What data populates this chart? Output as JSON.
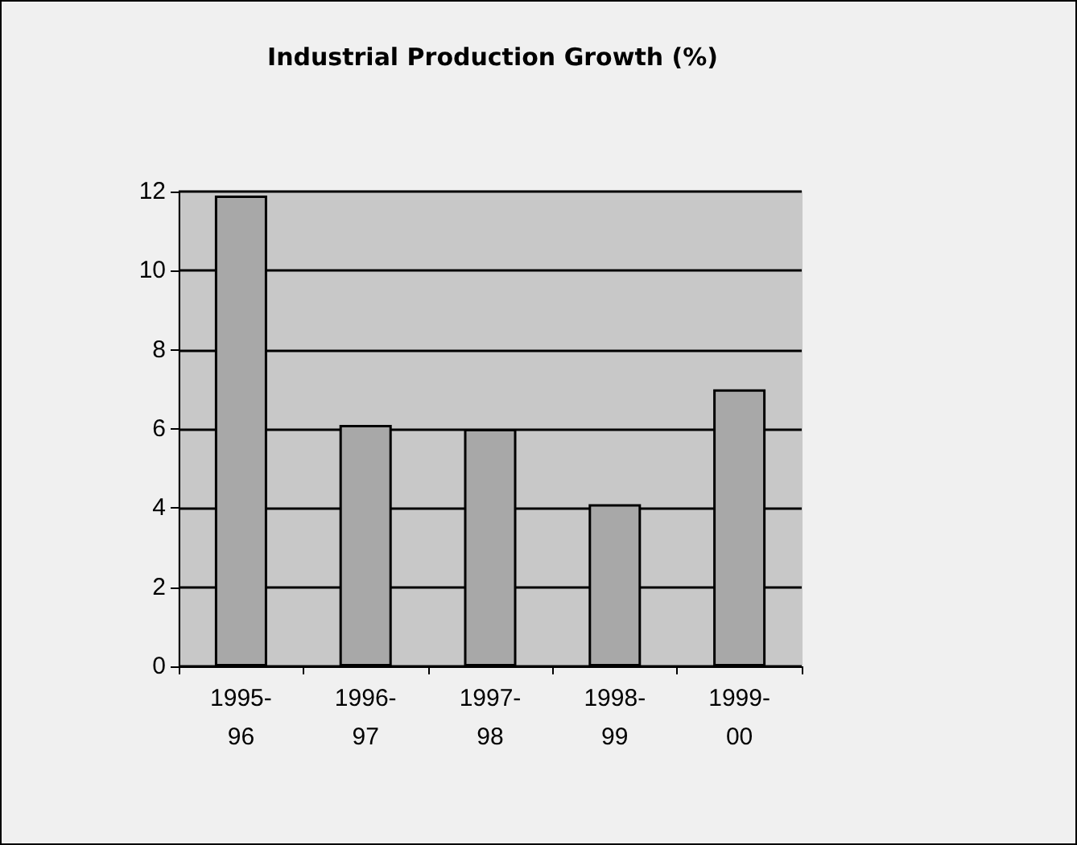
{
  "chart_data": {
    "type": "bar",
    "title": "Industrial Production Growth (%)",
    "categories": [
      "1995-96",
      "1996-97",
      "1997-98",
      "1998-99",
      "1999-00"
    ],
    "values": [
      11.9,
      6.1,
      6.0,
      4.1,
      7.0
    ],
    "color": "#a8a8a8",
    "ylim": [
      0,
      12
    ],
    "yticks": [
      0,
      2,
      4,
      6,
      8,
      10,
      12
    ],
    "grid": "y"
  }
}
